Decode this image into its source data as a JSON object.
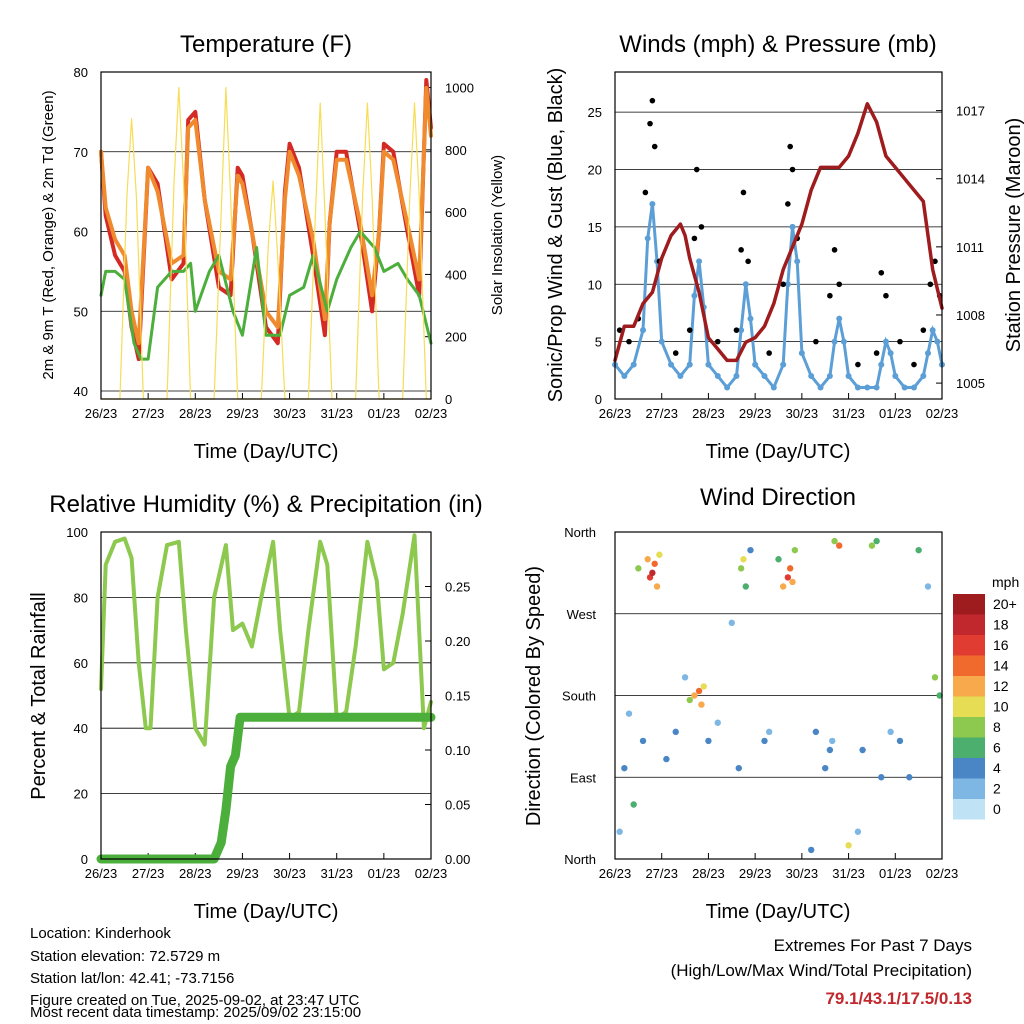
{
  "chart_data": [
    {
      "type": "line",
      "title": "Temperature (F)",
      "xlabel": "Time (Day/UTC)",
      "ylabel": "2m & 9m T (Red, Orange) & 2m Td (Green)",
      "ylabel_right": "Solar Insolation (Yellow)",
      "x_ticks": [
        "26/23",
        "27/23",
        "28/23",
        "29/23",
        "30/23",
        "31/23",
        "01/23",
        "02/23"
      ],
      "ylim": [
        39,
        80
      ],
      "y_ticks": [
        40,
        50,
        60,
        70,
        80
      ],
      "ylim_right": [
        0,
        1050
      ],
      "y_ticks_right": [
        0,
        200,
        400,
        600,
        800,
        1000
      ],
      "colors": {
        "temp_2m": "#d42a25",
        "temp_9m": "#f08a2e",
        "dewpoint": "#4caf3c",
        "insolation": "#f7dc55"
      },
      "series": [
        {
          "name": "2m T",
          "color": "#d42a25",
          "x": [
            0,
            0.1,
            0.3,
            0.5,
            0.65,
            0.8,
            1.0,
            1.2,
            1.5,
            1.75,
            1.85,
            2.0,
            2.2,
            2.5,
            2.75,
            2.9,
            3.0,
            3.2,
            3.5,
            3.75,
            3.9,
            4.0,
            4.2,
            4.5,
            4.75,
            4.85,
            5.0,
            5.2,
            5.5,
            5.75,
            5.9,
            6.0,
            6.2,
            6.5,
            6.75,
            6.9,
            7.0
          ],
          "y": [
            70,
            62,
            57,
            55,
            48,
            44,
            68,
            66,
            54,
            56,
            74,
            75,
            64,
            53,
            52,
            68,
            67,
            60,
            48,
            46,
            65,
            71,
            68,
            57,
            47,
            61,
            70,
            70,
            60,
            50,
            60,
            71,
            70,
            60,
            52,
            79,
            73
          ]
        },
        {
          "name": "9m T",
          "color": "#f08a2e",
          "x": [
            0,
            0.1,
            0.3,
            0.5,
            0.65,
            0.8,
            1.0,
            1.2,
            1.5,
            1.75,
            1.85,
            2.0,
            2.2,
            2.5,
            2.75,
            2.9,
            3.0,
            3.2,
            3.5,
            3.75,
            3.9,
            4.0,
            4.2,
            4.5,
            4.75,
            4.85,
            5.0,
            5.2,
            5.5,
            5.75,
            5.9,
            6.0,
            6.2,
            6.5,
            6.75,
            6.9,
            7.0
          ],
          "y": [
            70,
            63,
            59,
            57,
            50,
            46,
            68,
            65,
            56,
            57,
            73,
            74,
            64,
            55,
            54,
            67,
            66,
            60,
            50,
            48,
            64,
            70,
            67,
            59,
            49,
            61,
            69,
            69,
            61,
            52,
            60,
            70,
            69,
            61,
            54,
            78,
            72
          ]
        },
        {
          "name": "2m Td",
          "color": "#4caf3c",
          "x": [
            0,
            0.1,
            0.3,
            0.5,
            0.7,
            0.85,
            1.0,
            1.2,
            1.5,
            1.75,
            1.9,
            2.0,
            2.3,
            2.5,
            2.8,
            3.0,
            3.3,
            3.5,
            3.8,
            4.0,
            4.3,
            4.5,
            4.8,
            5.0,
            5.3,
            5.5,
            5.8,
            6.0,
            6.3,
            6.5,
            6.75,
            7.0
          ],
          "y": [
            52,
            55,
            55,
            54,
            46,
            44,
            44,
            53,
            55,
            55,
            56,
            50,
            55,
            57,
            50,
            47,
            58,
            47,
            47,
            52,
            53,
            57,
            50,
            54,
            58,
            60,
            58,
            55,
            56,
            54,
            52,
            46
          ]
        },
        {
          "name": "Solar Insolation",
          "color": "#f7dc55",
          "axis": "right",
          "x": [
            0,
            0.4,
            0.55,
            0.65,
            0.75,
            0.9,
            1.4,
            1.55,
            1.65,
            1.75,
            1.9,
            2.4,
            2.55,
            2.65,
            2.75,
            2.9,
            3.4,
            3.55,
            3.65,
            3.75,
            3.9,
            4.4,
            4.55,
            4.65,
            4.75,
            4.9,
            5.4,
            5.55,
            5.65,
            5.75,
            5.9,
            6.4,
            6.55,
            6.65,
            6.75,
            6.9,
            7.0
          ],
          "y": [
            0,
            0,
            650,
            900,
            650,
            0,
            0,
            700,
            1000,
            700,
            0,
            0,
            600,
            1000,
            650,
            0,
            0,
            500,
            700,
            450,
            0,
            0,
            600,
            950,
            600,
            0,
            0,
            650,
            950,
            650,
            0,
            0,
            650,
            950,
            650,
            0,
            0
          ]
        }
      ]
    },
    {
      "type": "scatter",
      "title": "Winds (mph) & Pressure (mb)",
      "xlabel": "Time (Day/UTC)",
      "ylabel": "Sonic/Prop Wind & Gust (Blue, Black)",
      "ylabel_right": "Station Pressure (Maroon)",
      "x_ticks": [
        "26/23",
        "27/23",
        "28/23",
        "29/23",
        "30/23",
        "31/23",
        "01/23",
        "02/23"
      ],
      "ylim": [
        0,
        28.5
      ],
      "y_ticks": [
        0,
        5,
        10,
        15,
        20,
        25
      ],
      "ylim_right": [
        1004.3,
        1018.7
      ],
      "y_ticks_right": [
        1005,
        1008,
        1011,
        1014,
        1017
      ],
      "colors": {
        "wind": "#5b9fd6",
        "gust": "#000000",
        "pressure": "#9e1b1e"
      },
      "series": [
        {
          "name": "Wind",
          "color": "#5b9fd6",
          "x": [
            0,
            0.2,
            0.4,
            0.6,
            0.7,
            0.8,
            0.9,
            1.0,
            1.2,
            1.4,
            1.6,
            1.7,
            1.8,
            1.9,
            2.0,
            2.2,
            2.4,
            2.6,
            2.7,
            2.8,
            2.9,
            3.0,
            3.2,
            3.4,
            3.6,
            3.7,
            3.8,
            3.9,
            4.0,
            4.2,
            4.4,
            4.6,
            4.7,
            4.8,
            4.9,
            5.0,
            5.2,
            5.4,
            5.6,
            5.7,
            5.8,
            5.9,
            6.0,
            6.2,
            6.4,
            6.6,
            6.7,
            6.8,
            6.9,
            7.0
          ],
          "y": [
            3,
            2,
            3,
            6,
            14,
            17,
            12,
            5,
            3,
            2,
            3,
            9,
            12,
            8,
            3,
            2,
            1,
            2,
            6,
            10,
            7,
            3,
            2,
            1,
            3,
            10,
            15,
            12,
            4,
            2,
            1,
            2,
            5,
            7,
            5,
            2,
            1,
            1,
            1,
            3,
            5,
            4,
            2,
            1,
            1,
            2,
            4,
            6,
            5,
            3
          ]
        },
        {
          "name": "Gust",
          "color": "#000000",
          "x": [
            0.1,
            0.3,
            0.5,
            0.65,
            0.75,
            0.8,
            0.85,
            0.95,
            1.3,
            1.6,
            1.7,
            1.75,
            1.85,
            2.2,
            2.6,
            2.7,
            2.75,
            2.85,
            3.3,
            3.6,
            3.7,
            3.75,
            3.8,
            3.9,
            4.3,
            4.6,
            4.7,
            4.8,
            5.2,
            5.6,
            5.7,
            5.8,
            6.1,
            6.4,
            6.6,
            6.75,
            6.85,
            6.95
          ],
          "y": [
            6,
            5,
            7,
            18,
            24,
            26,
            22,
            12,
            4,
            6,
            14,
            20,
            15,
            5,
            6,
            13,
            18,
            12,
            4,
            10,
            17,
            22,
            20,
            14,
            5,
            9,
            13,
            10,
            3,
            4,
            11,
            9,
            5,
            3,
            6,
            10,
            12,
            9
          ]
        },
        {
          "name": "Station Pressure",
          "color": "#9e1b1e",
          "axis": "right",
          "x": [
            0,
            0.2,
            0.4,
            0.6,
            0.8,
            1.0,
            1.2,
            1.4,
            1.5,
            1.6,
            1.8,
            2.0,
            2.2,
            2.4,
            2.6,
            2.8,
            3.0,
            3.2,
            3.4,
            3.6,
            3.8,
            4.0,
            4.2,
            4.4,
            4.6,
            4.8,
            5.0,
            5.2,
            5.4,
            5.6,
            5.8,
            6.0,
            6.2,
            6.4,
            6.6,
            6.8,
            7.0
          ],
          "y": [
            1006,
            1007.5,
            1007.5,
            1008.5,
            1009,
            1010.5,
            1011.5,
            1012,
            1011.5,
            1010.5,
            1009,
            1007,
            1006.5,
            1006,
            1006,
            1006.8,
            1007,
            1007.5,
            1008.5,
            1010,
            1011,
            1012,
            1013.5,
            1014.5,
            1014.5,
            1014.5,
            1015,
            1016,
            1017.3,
            1016.5,
            1015,
            1014.5,
            1014,
            1013.5,
            1013,
            1010,
            1008.3
          ]
        }
      ]
    },
    {
      "type": "line",
      "title": "Relative Humidity (%) & Precipitation (in)",
      "xlabel": "Time (Day/UTC)",
      "ylabel": "Percent & Total Rainfall",
      "x_ticks": [
        "26/23",
        "27/23",
        "28/23",
        "29/23",
        "30/23",
        "31/23",
        "01/23",
        "02/23"
      ],
      "ylim": [
        0,
        100
      ],
      "y_ticks": [
        0,
        20,
        40,
        60,
        80,
        100
      ],
      "ylim_right": [
        0,
        0.3
      ],
      "y_ticks_right": [
        "0.00",
        "0.05",
        "0.10",
        "0.15",
        "0.20",
        "0.25"
      ],
      "colors": {
        "rh": "#8dc84f",
        "precip": "#4caf3c"
      },
      "series": [
        {
          "name": "Relative Humidity",
          "color": "#8dc84f",
          "x": [
            0,
            0.1,
            0.3,
            0.5,
            0.65,
            0.8,
            0.95,
            1.05,
            1.2,
            1.4,
            1.65,
            1.8,
            2.0,
            2.2,
            2.4,
            2.65,
            2.8,
            3.0,
            3.2,
            3.4,
            3.65,
            3.8,
            4.0,
            4.2,
            4.4,
            4.65,
            4.8,
            5.0,
            5.2,
            5.4,
            5.65,
            5.85,
            6.0,
            6.2,
            6.4,
            6.65,
            6.85,
            7.0
          ],
          "y": [
            52,
            90,
            97,
            98,
            92,
            60,
            40,
            40,
            80,
            96,
            97,
            70,
            40,
            35,
            80,
            96,
            70,
            72,
            65,
            80,
            97,
            70,
            43,
            45,
            70,
            97,
            90,
            43,
            45,
            65,
            97,
            85,
            58,
            60,
            75,
            99,
            40,
            48
          ]
        },
        {
          "name": "Total Rainfall",
          "color": "#4caf3c",
          "axis": "right",
          "x": [
            0,
            0.5,
            1.0,
            1.5,
            2.0,
            2.4,
            2.55,
            2.65,
            2.75,
            2.85,
            2.95,
            3.2,
            3.6,
            4.0,
            4.5,
            5.0,
            5.5,
            6.0,
            6.5,
            7.0
          ],
          "y": [
            0,
            0,
            0,
            0,
            0,
            0,
            0.015,
            0.045,
            0.085,
            0.095,
            0.13,
            0.13,
            0.13,
            0.13,
            0.13,
            0.13,
            0.13,
            0.13,
            0.13,
            0.13
          ]
        }
      ]
    },
    {
      "type": "scatter",
      "title": "Wind Direction",
      "xlabel": "Time (Day/UTC)",
      "ylabel": "Direction (Colored By Speed)",
      "x_ticks": [
        "26/23",
        "27/23",
        "28/23",
        "29/23",
        "30/23",
        "31/23",
        "01/23",
        "02/23"
      ],
      "y_ticks": [
        "North",
        "East",
        "South",
        "West",
        "North"
      ],
      "ylim": [
        0,
        360
      ],
      "legend": {
        "title": "mph",
        "labels": [
          "20+",
          "18",
          "16",
          "14",
          "12",
          "10",
          "8",
          "6",
          "4",
          "2",
          "0"
        ],
        "colors": [
          "#9e1b1e",
          "#c0282d",
          "#e03c31",
          "#f06a2e",
          "#f8a94c",
          "#e6dd55",
          "#8dc84f",
          "#4caf6e",
          "#4a86c5",
          "#7eb7e3",
          "#bfe3f5"
        ]
      },
      "series": [
        {
          "name": "Direction",
          "x": [
            0.1,
            0.2,
            0.3,
            0.4,
            0.5,
            0.6,
            0.7,
            0.75,
            0.8,
            0.85,
            0.9,
            0.95,
            1.1,
            1.3,
            1.5,
            1.6,
            1.7,
            1.8,
            1.85,
            1.9,
            2.0,
            2.2,
            2.5,
            2.65,
            2.7,
            2.75,
            2.8,
            2.9,
            3.2,
            3.3,
            3.5,
            3.6,
            3.7,
            3.75,
            3.8,
            3.85,
            4.2,
            4.3,
            4.5,
            4.6,
            4.65,
            4.7,
            4.8,
            5.0,
            5.2,
            5.3,
            5.5,
            5.6,
            5.7,
            5.9,
            6.1,
            6.3,
            6.5,
            6.7,
            6.85,
            6.95
          ],
          "y": [
            30,
            100,
            160,
            60,
            320,
            130,
            330,
            310,
            315,
            325,
            300,
            335,
            110,
            140,
            200,
            175,
            180,
            185,
            170,
            190,
            130,
            150,
            260,
            100,
            320,
            330,
            300,
            340,
            130,
            140,
            330,
            300,
            310,
            320,
            305,
            340,
            10,
            140,
            100,
            120,
            130,
            350,
            345,
            15,
            30,
            120,
            345,
            350,
            90,
            140,
            130,
            90,
            340,
            300,
            200,
            180
          ],
          "speed": [
            2,
            4,
            2,
            6,
            8,
            4,
            12,
            16,
            18,
            14,
            12,
            10,
            4,
            4,
            2,
            8,
            12,
            14,
            12,
            10,
            4,
            2,
            2,
            4,
            8,
            10,
            6,
            4,
            4,
            2,
            6,
            12,
            16,
            14,
            12,
            8,
            4,
            4,
            4,
            4,
            2,
            8,
            14,
            10,
            2,
            4,
            8,
            6,
            4,
            2,
            4,
            4,
            6,
            2,
            8,
            6
          ]
        }
      ]
    }
  ],
  "info": {
    "location": "Location: Kinderhook",
    "elevation": "Station elevation: 72.5729 m",
    "latlon": "Station lat/lon: 42.41; -73.7156",
    "created": "Figure created on Tue, 2025-09-02, at 23:47 UTC",
    "timestamp": "Most recent data timestamp: 2025/09/02 23:15:00"
  },
  "extremes": {
    "heading": "Extremes For Past 7 Days",
    "subheading": "(High/Low/Max Wind/Total Precipitation)",
    "values": "79.1/43.1/17.5/0.13"
  }
}
